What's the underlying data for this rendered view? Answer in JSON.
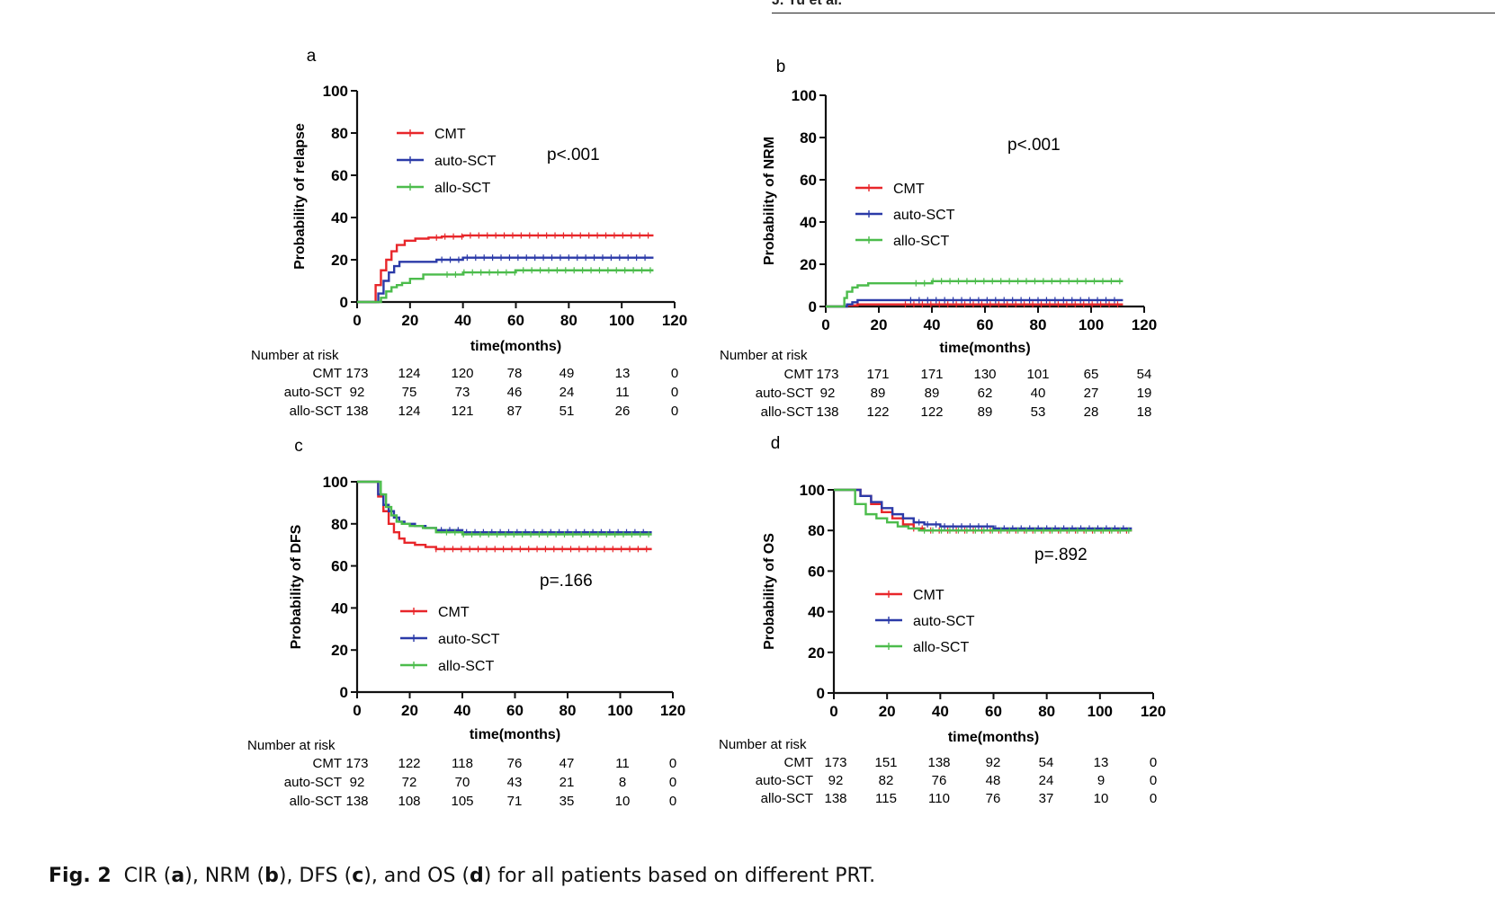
{
  "header": {
    "running_head": "J. Yu et al."
  },
  "caption": {
    "label": "Fig. 2",
    "parts": [
      "CIR (",
      "a",
      "), NRM (",
      "b",
      "), DFS (",
      "c",
      "), and OS (",
      "d",
      ") for all patients based on different PRT."
    ]
  },
  "colors": {
    "CMT": "#e8262a",
    "auto-SCT": "#2b3aa8",
    "allo-SCT": "#4cbc4c"
  },
  "chart_data": [
    {
      "panel": "a",
      "type": "line",
      "title": "",
      "xlabel": "time(months)",
      "ylabel": "Probability of relapse",
      "xlim": [
        0,
        120
      ],
      "ylim": [
        0,
        100
      ],
      "xticks": [
        0,
        20,
        40,
        60,
        80,
        100,
        120
      ],
      "yticks": [
        0,
        20,
        40,
        60,
        80,
        100
      ],
      "pvalue": "p<.001",
      "series": [
        {
          "name": "CMT",
          "x": [
            0,
            5,
            7,
            9,
            11,
            13,
            15,
            18,
            22,
            27,
            32,
            40,
            60,
            80,
            100,
            112
          ],
          "y": [
            0,
            0,
            8,
            15,
            20,
            24,
            27,
            29,
            30,
            30.5,
            31,
            31.5,
            31.5,
            31.5,
            31.5,
            31.5
          ]
        },
        {
          "name": "auto-SCT",
          "x": [
            0,
            6,
            8,
            10,
            12,
            14,
            16,
            20,
            30,
            40,
            60,
            80,
            100,
            112
          ],
          "y": [
            0,
            0,
            4,
            10,
            14,
            17,
            19,
            19,
            20,
            21,
            21,
            21,
            21,
            21
          ]
        },
        {
          "name": "allo-SCT",
          "x": [
            0,
            7,
            9,
            11,
            13,
            15,
            17,
            20,
            25,
            30,
            40,
            60,
            80,
            100,
            112
          ],
          "y": [
            0,
            0,
            2,
            5,
            7,
            8,
            9,
            11,
            13,
            13,
            14,
            15,
            15,
            15,
            15
          ]
        }
      ],
      "risk_table": {
        "title": "Number at risk",
        "times": [
          0,
          20,
          40,
          60,
          80,
          100,
          120
        ],
        "rows": [
          {
            "group": "CMT",
            "values": [
              173,
              124,
              120,
              78,
              49,
              13,
              0
            ]
          },
          {
            "group": "auto-SCT",
            "values": [
              92,
              75,
              73,
              46,
              24,
              11,
              0
            ]
          },
          {
            "group": "allo-SCT",
            "values": [
              138,
              124,
              121,
              87,
              51,
              26,
              0
            ]
          }
        ]
      }
    },
    {
      "panel": "b",
      "type": "line",
      "title": "",
      "xlabel": "time(months)",
      "ylabel": "Probability of NRM",
      "xlim": [
        0,
        120
      ],
      "ylim": [
        0,
        100
      ],
      "xticks": [
        0,
        20,
        40,
        60,
        80,
        100,
        120
      ],
      "yticks": [
        0,
        20,
        40,
        60,
        80,
        100
      ],
      "pvalue": "p<.001",
      "series": [
        {
          "name": "CMT",
          "x": [
            0,
            6,
            8,
            12,
            20,
            40,
            60,
            80,
            100,
            112
          ],
          "y": [
            0,
            0,
            0.5,
            1,
            1,
            1,
            1,
            1,
            1,
            1
          ]
        },
        {
          "name": "auto-SCT",
          "x": [
            0,
            6,
            8,
            10,
            12,
            20,
            40,
            60,
            80,
            100,
            112
          ],
          "y": [
            0,
            0,
            1,
            2,
            3,
            3,
            3,
            3,
            3,
            3,
            3
          ]
        },
        {
          "name": "allo-SCT",
          "x": [
            0,
            5,
            7,
            8,
            10,
            12,
            16,
            20,
            30,
            40,
            60,
            80,
            100,
            112
          ],
          "y": [
            0,
            0,
            4,
            7,
            9,
            10,
            11,
            11,
            11,
            12,
            12,
            12,
            12,
            12
          ]
        }
      ],
      "risk_table": {
        "title": "Number at risk",
        "times": [
          0,
          20,
          40,
          60,
          80,
          100,
          120
        ],
        "rows": [
          {
            "group": "CMT",
            "values": [
              173,
              171,
              171,
              130,
              101,
              65,
              54
            ]
          },
          {
            "group": "auto-SCT",
            "values": [
              92,
              89,
              89,
              62,
              40,
              27,
              19
            ]
          },
          {
            "group": "allo-SCT",
            "values": [
              138,
              122,
              122,
              89,
              53,
              28,
              18
            ]
          }
        ]
      }
    },
    {
      "panel": "c",
      "type": "line",
      "title": "",
      "xlabel": "time(months)",
      "ylabel": "Probability of DFS",
      "xlim": [
        0,
        120
      ],
      "ylim": [
        0,
        100
      ],
      "xticks": [
        0,
        20,
        40,
        60,
        80,
        100,
        120
      ],
      "yticks": [
        0,
        20,
        40,
        60,
        80,
        100
      ],
      "pvalue": "p=.166",
      "series": [
        {
          "name": "CMT",
          "x": [
            0,
            6,
            8,
            10,
            12,
            14,
            16,
            18,
            22,
            26,
            30,
            40,
            60,
            80,
            100,
            112
          ],
          "y": [
            100,
            100,
            93,
            86,
            80,
            76,
            73,
            71,
            70,
            69,
            68,
            68,
            68,
            68,
            68,
            68
          ]
        },
        {
          "name": "auto-SCT",
          "x": [
            0,
            6,
            8,
            10,
            12,
            14,
            16,
            18,
            22,
            26,
            30,
            40,
            60,
            80,
            100,
            112
          ],
          "y": [
            100,
            100,
            94,
            89,
            86,
            83,
            81,
            80,
            79,
            78,
            77,
            76,
            76,
            76,
            76,
            76
          ]
        },
        {
          "name": "allo-SCT",
          "x": [
            0,
            7,
            9,
            11,
            13,
            15,
            17,
            20,
            25,
            30,
            40,
            60,
            80,
            100,
            112
          ],
          "y": [
            100,
            100,
            94,
            88,
            84,
            81,
            80,
            79,
            78,
            76,
            75,
            75,
            75,
            75,
            75
          ]
        }
      ],
      "risk_table": {
        "title": "Number at risk",
        "times": [
          0,
          20,
          40,
          60,
          80,
          100,
          120
        ],
        "rows": [
          {
            "group": "CMT",
            "values": [
              173,
              122,
              118,
              76,
              47,
              11,
              0
            ]
          },
          {
            "group": "auto-SCT",
            "values": [
              92,
              72,
              70,
              43,
              21,
              8,
              0
            ]
          },
          {
            "group": "allo-SCT",
            "values": [
              138,
              108,
              105,
              71,
              35,
              10,
              0
            ]
          }
        ]
      }
    },
    {
      "panel": "d",
      "type": "line",
      "title": "",
      "xlabel": "time(months)",
      "ylabel": "Probability of OS",
      "xlim": [
        0,
        120
      ],
      "ylim": [
        0,
        100
      ],
      "xticks": [
        0,
        20,
        40,
        60,
        80,
        100,
        120
      ],
      "yticks": [
        0,
        20,
        40,
        60,
        80,
        100
      ],
      "pvalue": "p=.892",
      "series": [
        {
          "name": "CMT",
          "x": [
            0,
            6,
            10,
            14,
            18,
            22,
            26,
            30,
            34,
            40,
            60,
            80,
            100,
            112
          ],
          "y": [
            100,
            100,
            97,
            93,
            89,
            86,
            83,
            81,
            80,
            80,
            80,
            80,
            80,
            80
          ]
        },
        {
          "name": "auto-SCT",
          "x": [
            0,
            6,
            10,
            14,
            18,
            22,
            26,
            30,
            34,
            40,
            60,
            80,
            100,
            112
          ],
          "y": [
            100,
            100,
            97,
            94,
            91,
            88,
            86,
            84,
            83,
            82,
            81,
            81,
            81,
            81
          ]
        },
        {
          "name": "allo-SCT",
          "x": [
            0,
            5,
            8,
            12,
            16,
            20,
            24,
            28,
            32,
            40,
            60,
            80,
            100,
            112
          ],
          "y": [
            100,
            100,
            93,
            88,
            86,
            84,
            82,
            81,
            80,
            80,
            80,
            80,
            80,
            80
          ]
        }
      ],
      "risk_table": {
        "title": "Number at risk",
        "times": [
          0,
          20,
          40,
          60,
          80,
          100,
          120
        ],
        "rows": [
          {
            "group": "CMT",
            "values": [
              173,
              151,
              138,
              92,
              54,
              13,
              0
            ]
          },
          {
            "group": "auto-SCT",
            "values": [
              92,
              82,
              76,
              48,
              24,
              9,
              0
            ]
          },
          {
            "group": "allo-SCT",
            "values": [
              138,
              115,
              110,
              76,
              37,
              10,
              0
            ]
          }
        ]
      }
    }
  ]
}
